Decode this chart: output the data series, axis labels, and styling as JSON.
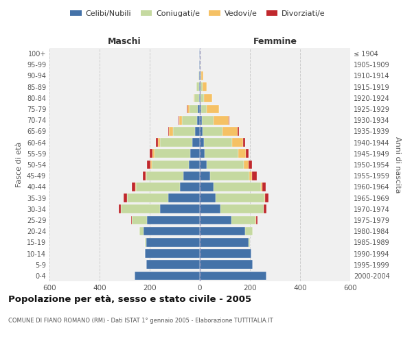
{
  "age_groups": [
    "0-4",
    "5-9",
    "10-14",
    "15-19",
    "20-24",
    "25-29",
    "30-34",
    "35-39",
    "40-44",
    "45-49",
    "50-54",
    "55-59",
    "60-64",
    "65-69",
    "70-74",
    "75-79",
    "80-84",
    "85-89",
    "90-94",
    "95-99",
    "100+"
  ],
  "birth_years": [
    "2000-2004",
    "1995-1999",
    "1990-1994",
    "1985-1989",
    "1980-1984",
    "1975-1979",
    "1970-1974",
    "1965-1969",
    "1960-1964",
    "1955-1959",
    "1950-1954",
    "1945-1949",
    "1940-1944",
    "1935-1939",
    "1930-1934",
    "1925-1929",
    "1920-1924",
    "1915-1919",
    "1910-1914",
    "1905-1909",
    "≤ 1904"
  ],
  "maschi": {
    "celibi": [
      260,
      215,
      220,
      215,
      225,
      210,
      160,
      125,
      80,
      65,
      45,
      38,
      30,
      20,
      12,
      8,
      3,
      4,
      2,
      2,
      2
    ],
    "coniugati": [
      0,
      0,
      0,
      4,
      15,
      60,
      155,
      165,
      175,
      148,
      148,
      143,
      128,
      88,
      58,
      33,
      18,
      9,
      4,
      2,
      0
    ],
    "vedovi": [
      0,
      0,
      0,
      0,
      0,
      0,
      1,
      1,
      2,
      3,
      5,
      8,
      10,
      15,
      12,
      8,
      5,
      2,
      0,
      0,
      0
    ],
    "divorziati": [
      0,
      0,
      0,
      0,
      1,
      3,
      8,
      12,
      15,
      12,
      12,
      10,
      8,
      3,
      3,
      3,
      0,
      0,
      0,
      0,
      0
    ]
  },
  "femmine": {
    "nubili": [
      265,
      210,
      205,
      195,
      180,
      125,
      82,
      62,
      55,
      42,
      28,
      20,
      16,
      12,
      8,
      5,
      3,
      3,
      2,
      1,
      1
    ],
    "coniugate": [
      0,
      0,
      0,
      5,
      30,
      98,
      172,
      195,
      188,
      155,
      148,
      133,
      112,
      78,
      48,
      23,
      13,
      7,
      3,
      1,
      0
    ],
    "vedove": [
      0,
      0,
      0,
      0,
      0,
      1,
      1,
      2,
      5,
      12,
      18,
      30,
      45,
      62,
      58,
      48,
      33,
      17,
      8,
      2,
      0
    ],
    "divorziate": [
      0,
      0,
      0,
      0,
      2,
      5,
      10,
      15,
      15,
      18,
      15,
      12,
      8,
      5,
      3,
      2,
      1,
      1,
      0,
      0,
      0
    ]
  },
  "colors": {
    "celibi_nubili": "#4472a8",
    "coniugati": "#c5d9a0",
    "vedovi": "#f5c165",
    "divorziati": "#c0282d"
  },
  "xlim": 600,
  "title": "Popolazione per età, sesso e stato civile - 2005",
  "subtitle": "COMUNE DI FIANO ROMANO (RM) - Dati ISTAT 1° gennaio 2005 - Elaborazione TUTTITALIA.IT",
  "ylabel_left": "Fasce di età",
  "ylabel_right": "Anni di nascita",
  "xlabel_maschi": "Maschi",
  "xlabel_femmine": "Femmine",
  "legend_labels": [
    "Celibi/Nubili",
    "Coniugati/e",
    "Vedovi/e",
    "Divorziati/e"
  ],
  "bg_color": "#ffffff",
  "plot_bg_color": "#f0f0f0",
  "grid_color": "#cccccc"
}
